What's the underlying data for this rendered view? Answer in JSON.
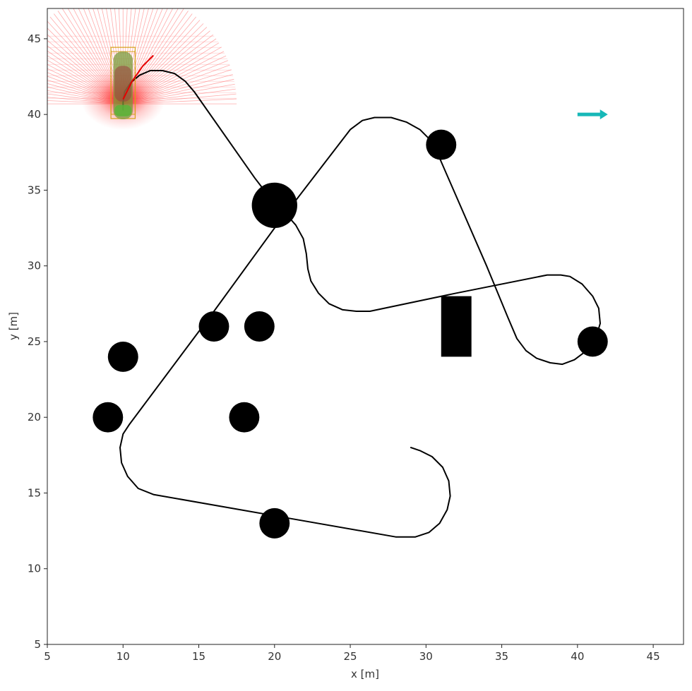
{
  "chart_data": {
    "type": "scatter",
    "title": "",
    "xlabel": "x [m]",
    "ylabel": "y [m]",
    "xlim": [
      5,
      47
    ],
    "ylim": [
      5,
      47
    ],
    "xticks": [
      5,
      10,
      15,
      20,
      25,
      30,
      35,
      40,
      45
    ],
    "yticks": [
      5,
      10,
      15,
      20,
      25,
      30,
      35,
      40,
      45
    ],
    "grid": false,
    "obstacles_circles": [
      {
        "x": 20,
        "y": 34,
        "r": 1.5
      },
      {
        "x": 31,
        "y": 38,
        "r": 1.0
      },
      {
        "x": 16,
        "y": 26,
        "r": 1.0
      },
      {
        "x": 19,
        "y": 26,
        "r": 1.0
      },
      {
        "x": 10,
        "y": 24,
        "r": 1.0
      },
      {
        "x": 9,
        "y": 20,
        "r": 1.0
      },
      {
        "x": 18,
        "y": 20,
        "r": 1.0
      },
      {
        "x": 20,
        "y": 13,
        "r": 1.0
      },
      {
        "x": 41,
        "y": 25,
        "r": 1.0
      }
    ],
    "obstacles_rects": [
      {
        "x0": 31,
        "y0": 24,
        "x1": 33,
        "y1": 28
      }
    ],
    "path": [
      [
        29.0,
        18.0
      ],
      [
        29.6,
        17.8
      ],
      [
        30.4,
        17.4
      ],
      [
        31.1,
        16.7
      ],
      [
        31.5,
        15.8
      ],
      [
        31.6,
        14.8
      ],
      [
        31.4,
        13.9
      ],
      [
        30.9,
        13.0
      ],
      [
        30.2,
        12.4
      ],
      [
        29.3,
        12.1
      ],
      [
        28.0,
        12.1
      ],
      [
        20.0,
        13.5
      ],
      [
        12.0,
        14.9
      ],
      [
        11.0,
        15.3
      ],
      [
        10.3,
        16.1
      ],
      [
        9.9,
        17.0
      ],
      [
        9.8,
        18.0
      ],
      [
        10.0,
        18.9
      ],
      [
        10.4,
        19.5
      ],
      [
        16.0,
        27.0
      ],
      [
        20.0,
        32.5
      ],
      [
        25.0,
        39.0
      ],
      [
        25.8,
        39.6
      ],
      [
        26.6,
        39.8
      ],
      [
        27.7,
        39.8
      ],
      [
        28.7,
        39.5
      ],
      [
        29.6,
        39.0
      ],
      [
        30.3,
        38.3
      ],
      [
        30.6,
        37.8
      ],
      [
        34.0,
        30.0
      ],
      [
        35.4,
        26.6
      ],
      [
        36.0,
        25.2
      ],
      [
        36.6,
        24.4
      ],
      [
        37.3,
        23.9
      ],
      [
        38.2,
        23.6
      ],
      [
        39.0,
        23.5
      ],
      [
        39.8,
        23.8
      ],
      [
        40.6,
        24.4
      ],
      [
        41.2,
        25.2
      ],
      [
        41.5,
        26.2
      ],
      [
        41.4,
        27.2
      ],
      [
        41.0,
        28.0
      ],
      [
        40.3,
        28.8
      ],
      [
        39.5,
        29.3
      ],
      [
        38.9,
        29.4
      ],
      [
        38.0,
        29.4
      ],
      [
        32.0,
        28.2
      ],
      [
        26.3,
        27.0
      ],
      [
        25.4,
        27.0
      ],
      [
        24.5,
        27.1
      ],
      [
        23.6,
        27.5
      ],
      [
        22.9,
        28.2
      ],
      [
        22.4,
        29.0
      ],
      [
        22.2,
        29.8
      ],
      [
        22.1,
        30.8
      ],
      [
        21.9,
        31.8
      ],
      [
        21.4,
        32.7
      ],
      [
        20.6,
        33.6
      ],
      [
        19.7,
        34.5
      ],
      [
        18.7,
        35.8
      ],
      [
        14.7,
        41.5
      ],
      [
        14.1,
        42.2
      ],
      [
        13.4,
        42.7
      ],
      [
        12.6,
        42.9
      ],
      [
        11.8,
        42.9
      ],
      [
        11.1,
        42.6
      ],
      [
        10.5,
        42.1
      ],
      [
        10.1,
        41.5
      ],
      [
        10.0,
        40.8
      ],
      [
        10.0,
        40.3
      ]
    ],
    "red_trajectory": [
      [
        10.0,
        41.0
      ],
      [
        10.6,
        42.2
      ],
      [
        11.3,
        43.2
      ],
      [
        12.0,
        43.9
      ]
    ],
    "arrow": {
      "x": 40,
      "y": 40,
      "dx": 2,
      "dy": 0
    },
    "vehicle": {
      "x": 10,
      "y": 41.8
    },
    "sensor_origin": {
      "x": 10,
      "y": 40.7
    },
    "colors": {
      "path": "#000000",
      "obstacle": "#000000",
      "trajectory": "#e60000",
      "rays": "#ff6666",
      "arrow": "#17b8b8",
      "vehicle_box": "#d4a017",
      "vehicle_body": "#7a9a3a",
      "vehicle_start": "#5ab43a"
    }
  }
}
